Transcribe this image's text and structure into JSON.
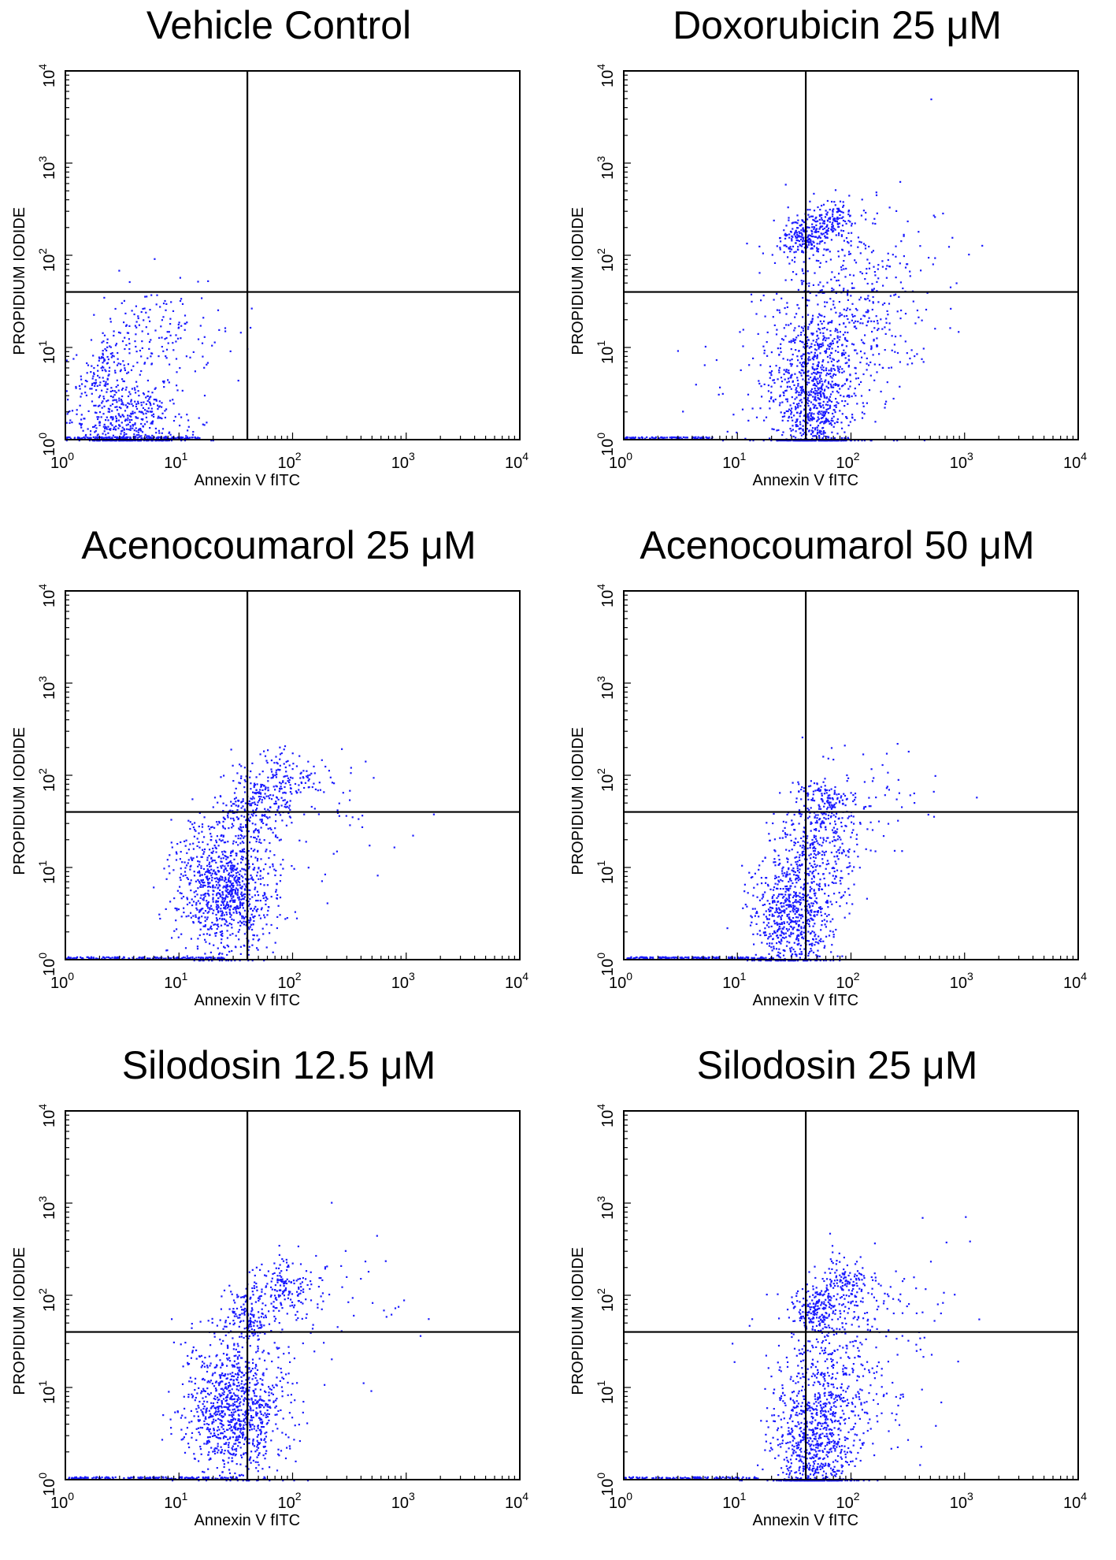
{
  "chart_data": [
    {
      "type": "scatter",
      "title": "Vehicle Control",
      "xlabel": "Annexin V fITC",
      "ylabel": "PROPIDIUM IODIDE",
      "x_scale": "log",
      "y_scale": "log",
      "xlim": [
        1,
        10000
      ],
      "ylim": [
        1,
        10000
      ],
      "x_ticks": [
        "10^0",
        "10^1",
        "10^2",
        "10^3",
        "10^4"
      ],
      "y_ticks": [
        "10^0",
        "10^1",
        "10^2",
        "10^3",
        "10^4"
      ],
      "gate": {
        "x": 40,
        "y": 40
      },
      "point_color": "#1a1aff",
      "clusters": [
        {
          "cx": 2.2,
          "cy": 6,
          "sx": 0.1,
          "sy": 0.25,
          "n": 120
        },
        {
          "cx": 3.5,
          "cy": 1.6,
          "sx": 0.25,
          "sy": 0.25,
          "n": 500
        },
        {
          "cx": 6,
          "cy": 15,
          "sx": 0.25,
          "sy": 0.25,
          "n": 110
        },
        {
          "cx": 12,
          "cy": 12,
          "sx": 0.35,
          "sy": 0.35,
          "n": 45
        }
      ],
      "baseline": {
        "from": 1,
        "to": 15,
        "n": 160
      }
    },
    {
      "type": "scatter",
      "title": "Doxorubicin 25 μM",
      "xlabel": "Annexin V fITC",
      "ylabel": "PROPIDIUM IODIDE",
      "x_scale": "log",
      "y_scale": "log",
      "xlim": [
        1,
        10000
      ],
      "ylim": [
        1,
        10000
      ],
      "x_ticks": [
        "10^0",
        "10^1",
        "10^2",
        "10^3",
        "10^4"
      ],
      "y_ticks": [
        "10^0",
        "10^1",
        "10^2",
        "10^3",
        "10^4"
      ],
      "gate": {
        "x": 40,
        "y": 40
      },
      "point_color": "#1a1aff",
      "clusters": [
        {
          "cx": 45,
          "cy": 2.5,
          "sx": 0.17,
          "sy": 0.45,
          "n": 850
        },
        {
          "cx": 40,
          "cy": 160,
          "sx": 0.12,
          "sy": 0.12,
          "n": 220
        },
        {
          "cx": 70,
          "cy": 250,
          "sx": 0.1,
          "sy": 0.1,
          "n": 120
        },
        {
          "cx": 80,
          "cy": 20,
          "sx": 0.32,
          "sy": 0.55,
          "n": 500
        },
        {
          "cx": 20,
          "cy": 6,
          "sx": 0.3,
          "sy": 0.45,
          "n": 80
        },
        {
          "cx": 250,
          "cy": 120,
          "sx": 0.4,
          "sy": 0.4,
          "n": 60
        }
      ],
      "baseline": {
        "from": 1,
        "to": 6,
        "n": 90
      }
    },
    {
      "type": "scatter",
      "title": "Acenocoumarol 25 μM",
      "xlabel": "Annexin V fITC",
      "ylabel": "PROPIDIUM IODIDE",
      "x_scale": "log",
      "y_scale": "log",
      "xlim": [
        1,
        10000
      ],
      "ylim": [
        1,
        10000
      ],
      "x_ticks": [
        "10^0",
        "10^1",
        "10^2",
        "10^3",
        "10^4"
      ],
      "y_ticks": [
        "10^0",
        "10^1",
        "10^2",
        "10^3",
        "10^4"
      ],
      "gate": {
        "x": 40,
        "y": 40
      },
      "point_color": "#1a1aff",
      "clusters": [
        {
          "cx": 25,
          "cy": 6,
          "sx": 0.22,
          "sy": 0.38,
          "n": 1000
        },
        {
          "cx": 45,
          "cy": 45,
          "sx": 0.15,
          "sy": 0.2,
          "n": 200
        },
        {
          "cx": 80,
          "cy": 90,
          "sx": 0.18,
          "sy": 0.18,
          "n": 140
        },
        {
          "cx": 200,
          "cy": 40,
          "sx": 0.35,
          "sy": 0.35,
          "n": 60
        }
      ],
      "baseline": {
        "from": 1,
        "to": 25,
        "n": 150
      }
    },
    {
      "type": "scatter",
      "title": "Acenocoumarol 50 μM",
      "xlabel": "Annexin V fITC",
      "ylabel": "PROPIDIUM IODIDE",
      "x_scale": "log",
      "y_scale": "log",
      "xlim": [
        1,
        10000
      ],
      "ylim": [
        1,
        10000
      ],
      "x_ticks": [
        "10^0",
        "10^1",
        "10^2",
        "10^3",
        "10^4"
      ],
      "y_ticks": [
        "10^0",
        "10^1",
        "10^2",
        "10^3",
        "10^4"
      ],
      "gate": {
        "x": 40,
        "y": 40
      },
      "point_color": "#1a1aff",
      "clusters": [
        {
          "cx": 30,
          "cy": 3,
          "sx": 0.18,
          "sy": 0.35,
          "n": 750
        },
        {
          "cx": 50,
          "cy": 20,
          "sx": 0.2,
          "sy": 0.3,
          "n": 300
        },
        {
          "cx": 60,
          "cy": 50,
          "sx": 0.12,
          "sy": 0.12,
          "n": 110
        },
        {
          "cx": 150,
          "cy": 50,
          "sx": 0.35,
          "sy": 0.35,
          "n": 70
        }
      ],
      "baseline": {
        "from": 1,
        "to": 20,
        "n": 160
      }
    },
    {
      "type": "scatter",
      "title": "Silodosin 12.5 μM",
      "xlabel": "Annexin V fITC",
      "ylabel": "PROPIDIUM IODIDE",
      "x_scale": "log",
      "y_scale": "log",
      "xlim": [
        1,
        10000
      ],
      "ylim": [
        1,
        10000
      ],
      "x_ticks": [
        "10^0",
        "10^1",
        "10^2",
        "10^3",
        "10^4"
      ],
      "y_ticks": [
        "10^0",
        "10^1",
        "10^2",
        "10^3",
        "10^4"
      ],
      "gate": {
        "x": 40,
        "y": 40
      },
      "point_color": "#1a1aff",
      "clusters": [
        {
          "cx": 30,
          "cy": 6,
          "sx": 0.22,
          "sy": 0.38,
          "n": 1000
        },
        {
          "cx": 40,
          "cy": 60,
          "sx": 0.12,
          "sy": 0.15,
          "n": 160
        },
        {
          "cx": 80,
          "cy": 120,
          "sx": 0.15,
          "sy": 0.15,
          "n": 160
        },
        {
          "cx": 200,
          "cy": 60,
          "sx": 0.4,
          "sy": 0.4,
          "n": 60
        }
      ],
      "baseline": {
        "from": 1,
        "to": 30,
        "n": 150
      }
    },
    {
      "type": "scatter",
      "title": "Silodosin 25 μM",
      "xlabel": "Annexin V fITC",
      "ylabel": "PROPIDIUM IODIDE",
      "x_scale": "log",
      "y_scale": "log",
      "xlim": [
        1,
        10000
      ],
      "ylim": [
        1,
        10000
      ],
      "x_ticks": [
        "10^0",
        "10^1",
        "10^2",
        "10^3",
        "10^4"
      ],
      "y_ticks": [
        "10^0",
        "10^1",
        "10^2",
        "10^3",
        "10^4"
      ],
      "gate": {
        "x": 40,
        "y": 40
      },
      "point_color": "#1a1aff",
      "clusters": [
        {
          "cx": 45,
          "cy": 2.5,
          "sx": 0.18,
          "sy": 0.45,
          "n": 800
        },
        {
          "cx": 50,
          "cy": 70,
          "sx": 0.1,
          "sy": 0.12,
          "n": 190
        },
        {
          "cx": 90,
          "cy": 140,
          "sx": 0.12,
          "sy": 0.12,
          "n": 120
        },
        {
          "cx": 80,
          "cy": 15,
          "sx": 0.3,
          "sy": 0.5,
          "n": 400
        },
        {
          "cx": 250,
          "cy": 90,
          "sx": 0.4,
          "sy": 0.4,
          "n": 60
        }
      ],
      "baseline": {
        "from": 1,
        "to": 15,
        "n": 100
      }
    }
  ]
}
